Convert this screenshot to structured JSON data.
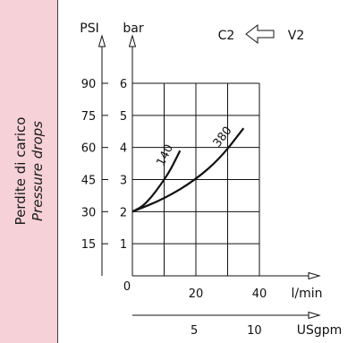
{
  "side_label": {
    "line1": "Perdite di carico",
    "line2": "Pressure drops"
  },
  "legend": {
    "left": "C2",
    "right": "V2"
  },
  "colors": {
    "panel": "#f7d1d8",
    "ink": "#111111"
  },
  "chart_data": {
    "type": "line",
    "xlabel": "l/min",
    "ylabel": "bar",
    "ylabel_secondary": "PSI",
    "xlabel_secondary": "USgpm",
    "xlim": [
      0,
      40
    ],
    "ylim": [
      0,
      6
    ],
    "x_ticks": [
      0,
      20,
      40
    ],
    "x_tick_labels": [
      "0",
      "20",
      "40"
    ],
    "x2_ticks": [
      5,
      10
    ],
    "y_ticks": [
      1,
      2,
      3,
      4,
      5,
      6
    ],
    "psi_ticks": [
      "15",
      "30",
      "45",
      "60",
      "75",
      "90"
    ],
    "grid": true,
    "series": [
      {
        "name": "140",
        "x": [
          0,
          3,
          6,
          9,
          12,
          15
        ],
        "y": [
          2.0,
          2.15,
          2.45,
          2.85,
          3.3,
          3.9
        ]
      },
      {
        "name": "380",
        "x": [
          0,
          10,
          20,
          28,
          35
        ],
        "y": [
          2.0,
          2.4,
          3.0,
          3.7,
          4.6
        ]
      }
    ]
  }
}
